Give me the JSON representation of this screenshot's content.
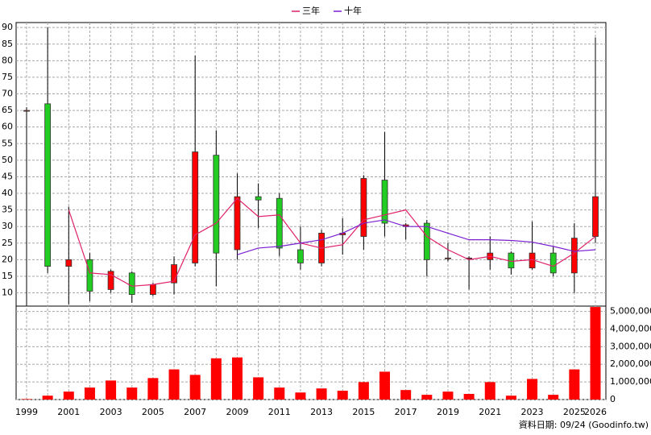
{
  "chart_data": {
    "type": "candlestick",
    "categories": [
      "1999",
      null,
      "2001",
      null,
      "2003",
      null,
      "2005",
      null,
      "2007",
      null,
      "2009",
      null,
      "2011",
      null,
      "2013",
      null,
      "2015",
      null,
      "2017",
      null,
      "2019",
      null,
      "2021",
      null,
      "2023",
      null,
      "2025",
      "2026"
    ],
    "open": [
      65,
      67,
      18,
      20,
      11,
      16,
      9.5,
      13,
      19,
      51.5,
      23,
      39,
      38.5,
      23,
      19,
      27.5,
      27,
      44,
      30,
      31,
      20.5,
      20.5,
      20,
      22,
      17.5,
      22,
      16,
      27
    ],
    "high": [
      66,
      90,
      36,
      22,
      17,
      16.5,
      13,
      21,
      81.5,
      59,
      46,
      43,
      40,
      30,
      29,
      32.5,
      45.5,
      58.5,
      31,
      32,
      25,
      21,
      27,
      22.5,
      31.5,
      24,
      31,
      87
    ],
    "low": [
      6,
      16,
      6.5,
      7.5,
      10,
      7,
      9,
      9.5,
      18,
      12,
      20,
      29.5,
      21,
      17,
      18,
      21.5,
      23,
      27,
      26,
      15,
      19.5,
      11,
      17,
      15.5,
      17,
      15,
      10,
      25
    ],
    "close": [
      65,
      18,
      20,
      10.5,
      16.5,
      9.5,
      12.5,
      18.5,
      52.5,
      22,
      39,
      38,
      23.5,
      19,
      28,
      28,
      44.5,
      31,
      30.5,
      20,
      20.5,
      20.5,
      22,
      17.5,
      22,
      16,
      26.5,
      39
    ],
    "up_color": "#ff0000",
    "down_color": "#22cc22",
    "series": [
      {
        "name": "三年",
        "color": "#e0206a",
        "values": [
          null,
          null,
          35,
          16,
          15.5,
          12,
          12.5,
          13.5,
          27.5,
          31,
          38.5,
          33,
          33.5,
          25,
          23.5,
          24.5,
          32,
          33.5,
          35,
          27,
          23,
          20,
          21,
          19.5,
          20,
          18,
          22,
          27
        ]
      },
      {
        "name": "十年",
        "color": "#7a1fd0",
        "values": [
          null,
          null,
          null,
          null,
          null,
          null,
          null,
          null,
          null,
          null,
          21.5,
          23.5,
          24,
          25,
          26,
          28,
          31,
          32,
          30,
          30,
          28,
          26,
          26,
          25.8,
          25.3,
          24,
          22.5,
          23
        ]
      }
    ],
    "volume": {
      "color": "#ff0000",
      "axis": "y2",
      "values": [
        30000,
        220000,
        450000,
        680000,
        1080000,
        680000,
        1220000,
        1710000,
        1400000,
        2340000,
        2390000,
        1260000,
        680000,
        400000,
        630000,
        500000,
        990000,
        1580000,
        540000,
        270000,
        450000,
        320000,
        990000,
        220000,
        1170000,
        270000,
        1710000,
        5250000
      ]
    },
    "ylim": [
      6,
      91.5
    ],
    "yticks": [
      10,
      15,
      20,
      25,
      30,
      35,
      40,
      45,
      50,
      55,
      60,
      65,
      70,
      75,
      80,
      85,
      90
    ],
    "y2lim": [
      0,
      5300000
    ],
    "y2ticks": [
      0,
      {
        "value": 1000000,
        "label": "1,000,000"
      },
      {
        "value": 2000000,
        "label": "2,000,000"
      },
      {
        "value": 3000000,
        "label": "3,000,000"
      },
      {
        "value": 4000000,
        "label": "4,000,000"
      },
      {
        "value": 5000000,
        "label": "5,000,000"
      }
    ],
    "grid": true,
    "footer": "資料日期: 09/24  (Goodinfo.tw)"
  }
}
